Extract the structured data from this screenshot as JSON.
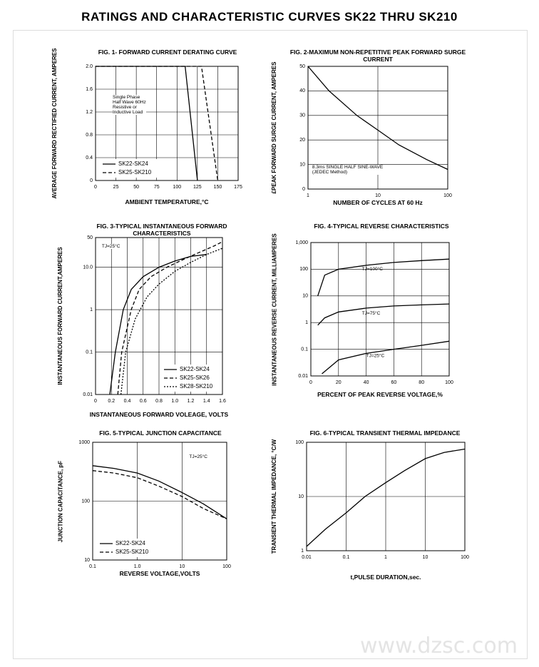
{
  "title": "RATINGS AND CHARACTERISTIC CURVES SK22 THRU SK210",
  "watermark": "www.dzsc.com",
  "chart_data": [
    {
      "type": "line",
      "title": "FIG. 1- FORWARD CURRENT DERATING CURVE",
      "x_label": "AMBIENT TEMPERATURE,°C",
      "y_label": "AVERAGE FORWARD RECTIFIED CURRENT, AMPERES",
      "xlim": [
        0,
        175
      ],
      "xticks": [
        0,
        25,
        50,
        75,
        100,
        125,
        150,
        175
      ],
      "ylim": [
        0,
        2
      ],
      "yticks": [
        0,
        0.4,
        0.8,
        1.2,
        1.6,
        {
          "value": 2,
          "label": "2.0"
        }
      ],
      "grid": true,
      "legend": "lower left",
      "annotations": [
        "Single Phase\nHalf Wave 60Hz\nResistive or\nInductive Load"
      ],
      "series": [
        {
          "name": "SK22-SK24",
          "color": "#000000",
          "linestyle": "solid",
          "x": [
            0,
            110,
            125
          ],
          "values": [
            2,
            2,
            0
          ]
        },
        {
          "name": "SK25-SK210",
          "color": "#000000",
          "linestyle": "dashed",
          "x": [
            0,
            130,
            150
          ],
          "values": [
            2,
            2,
            0
          ]
        }
      ]
    },
    {
      "type": "line",
      "title": "FIG. 2-MAXIMUM NON-REPETITIVE PEAK FORWARD SURGE CURRENT",
      "x_label": "NUMBER OF CYCLES AT 60 Hz",
      "y_label": "£PEAK FORWARD SURGE CURRENT, AMPERES",
      "xscale": "log",
      "xlim": [
        1,
        100
      ],
      "xticks": [
        1,
        10,
        100
      ],
      "ylim": [
        0,
        50
      ],
      "yticks": [
        0,
        10,
        20,
        30,
        40,
        50
      ],
      "grid": true,
      "annotations": [
        "8.3ms SINGLE HALF SINE-WAVE\n(JEDEC Method)"
      ],
      "series": [
        {
          "color": "#000000",
          "linestyle": "solid",
          "x": [
            1,
            2,
            5,
            10,
            20,
            50,
            100
          ],
          "values": [
            50,
            40,
            30,
            24,
            18,
            12,
            8
          ]
        }
      ]
    },
    {
      "type": "line",
      "title": "FIG. 3-TYPICAL INSTANTANEOUS FORWARD CHARACTERISTICS",
      "x_label": "INSTANTANEOUS FORWARD VOLEAGE, VOLTS",
      "y_label": "INSTANTANEOUS FORWARD CURRENT,AMPERES",
      "xlim": [
        0,
        1.6
      ],
      "xticks": [
        0,
        0.2,
        0.4,
        0.6,
        0.8,
        {
          "value": 1,
          "label": "1.0"
        },
        1.2,
        1.4,
        1.6
      ],
      "yscale": "log",
      "ylim": [
        0.01,
        50
      ],
      "yticks": [
        0.01,
        0.1,
        1,
        {
          "value": 10,
          "label": "10.0"
        },
        50
      ],
      "grid": true,
      "legend": "lower right",
      "annotations": [
        "TJ=25°C"
      ],
      "series": [
        {
          "name": "SK22-SK24",
          "color": "#000000",
          "linestyle": "solid",
          "x": [
            0.18,
            0.25,
            0.35,
            0.45,
            0.6,
            0.8,
            1.0,
            1.2,
            1.4
          ],
          "values": [
            0.01,
            0.1,
            1,
            3,
            6,
            10,
            14,
            18,
            20
          ]
        },
        {
          "name": "SK25-SK26",
          "color": "#000000",
          "linestyle": "dashed",
          "x": [
            0.28,
            0.33,
            0.45,
            0.55,
            0.7,
            0.9,
            1.1,
            1.3,
            1.5,
            1.6
          ],
          "values": [
            0.01,
            0.1,
            1,
            3,
            6,
            10,
            15,
            22,
            32,
            40
          ]
        },
        {
          "name": "SK28-SK210",
          "color": "#000000",
          "linestyle": "dotted",
          "x": [
            0.32,
            0.38,
            0.5,
            0.65,
            0.8,
            1.0,
            1.2,
            1.4,
            1.6
          ],
          "values": [
            0.01,
            0.1,
            0.6,
            2,
            4,
            8,
            13,
            20,
            28
          ]
        }
      ]
    },
    {
      "type": "line",
      "title": "FIG. 4-TYPICAL REVERSE CHARACTERISTICS",
      "x_label": "PERCENT OF PEAK REVERSE VOLTAGE,%",
      "y_label": "INSTANTANEOUS REVERSE CURRENT, MILLIAMPERES",
      "xlim": [
        0,
        100
      ],
      "xticks": [
        0,
        20,
        40,
        60,
        80,
        100
      ],
      "yscale": "log",
      "ylim": [
        0.01,
        1000
      ],
      "yticks": [
        0.01,
        0.1,
        1,
        10,
        100,
        {
          "value": 1000,
          "label": "1,000"
        }
      ],
      "grid": true,
      "legend": "inline",
      "series": [
        {
          "name": "TJ=100°C",
          "color": "#000000",
          "linestyle": "solid",
          "x": [
            5,
            10,
            20,
            40,
            60,
            80,
            100
          ],
          "values": [
            10,
            60,
            100,
            140,
            180,
            210,
            240
          ]
        },
        {
          "name": "TJ=75°C",
          "color": "#000000",
          "linestyle": "solid",
          "x": [
            5,
            10,
            20,
            40,
            60,
            80,
            100
          ],
          "values": [
            0.8,
            1.5,
            2.5,
            3.5,
            4.2,
            4.6,
            5
          ]
        },
        {
          "name": "TJ=25°C",
          "color": "#000000",
          "linestyle": "solid",
          "x": [
            8,
            20,
            40,
            60,
            80,
            100
          ],
          "values": [
            0.012,
            0.04,
            0.07,
            0.1,
            0.14,
            0.2
          ]
        }
      ]
    },
    {
      "type": "line",
      "title": "FIG. 5-TYPICAL JUNCTION CAPACITANCE",
      "x_label": "REVERSE VOLTAGE,VOLTS",
      "y_label": "JUNCTION CAPACITANCE, pF",
      "xscale": "log",
      "xlim": [
        0.1,
        100
      ],
      "xticks": [
        0.1,
        {
          "value": 1,
          "label": "1.0"
        },
        10,
        100
      ],
      "yscale": "log",
      "ylim": [
        10,
        1000
      ],
      "yticks": [
        10,
        100,
        1000
      ],
      "grid": true,
      "legend": "lower left",
      "annotations": [
        "TJ=25°C"
      ],
      "series": [
        {
          "name": "SK22-SK24",
          "color": "#000000",
          "linestyle": "solid",
          "x": [
            0.1,
            0.3,
            1,
            3,
            10,
            30,
            100
          ],
          "values": [
            400,
            360,
            300,
            220,
            140,
            90,
            50
          ]
        },
        {
          "name": "SK25-SK210",
          "color": "#000000",
          "linestyle": "dashed",
          "x": [
            0.1,
            0.3,
            1,
            3,
            10,
            30,
            100
          ],
          "values": [
            330,
            300,
            250,
            180,
            120,
            75,
            50
          ]
        }
      ]
    },
    {
      "type": "line",
      "title": "FIG. 6-TYPICAL TRANSIENT THERMAL IMPEDANCE",
      "x_label": "t,PULSE DURATION,sec.",
      "y_label": "TRANSIENT THERMAL IMPEDANCE, °C/W",
      "xscale": "log",
      "xlim": [
        0.01,
        100
      ],
      "xticks": [
        0.01,
        0.1,
        1,
        10,
        100
      ],
      "yscale": "log",
      "ylim": [
        1,
        100
      ],
      "yticks": [
        1,
        10,
        100
      ],
      "grid": true,
      "series": [
        {
          "color": "#000000",
          "linestyle": "solid",
          "x": [
            0.01,
            0.03,
            0.1,
            0.3,
            1,
            3,
            10,
            30,
            100
          ],
          "values": [
            1.2,
            2.5,
            5,
            10,
            18,
            30,
            50,
            65,
            75
          ]
        }
      ]
    }
  ]
}
